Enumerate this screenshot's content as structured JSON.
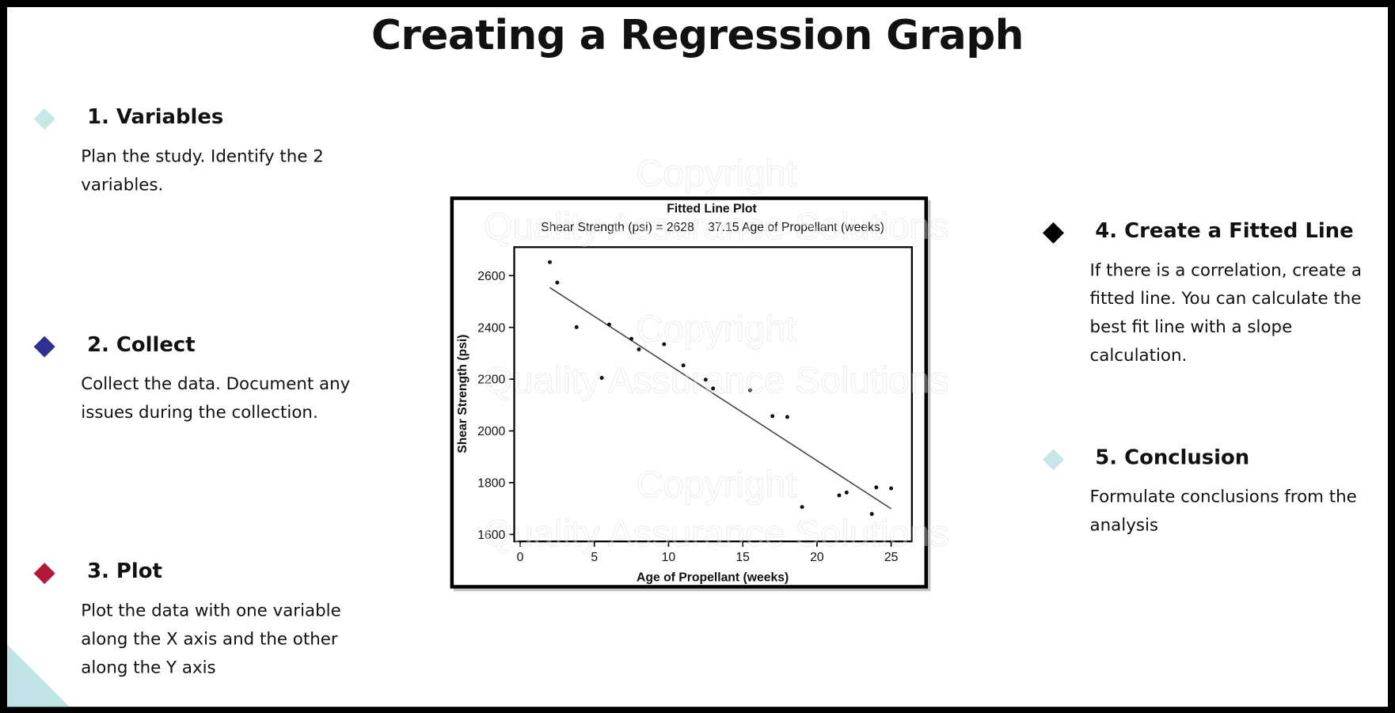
{
  "header": {
    "title": "Creating a Regression Graph"
  },
  "steps": [
    {
      "heading": "1. Variables",
      "text": "Plan the study. Identify the 2 variables."
    },
    {
      "heading": "2. Collect",
      "text": "Collect the data. Document any issues during the collection."
    },
    {
      "heading": "3. Plot",
      "text": "Plot the data with one variable along the X axis and the other along the Y axis"
    },
    {
      "heading": "4. Create a Fitted Line",
      "text": "If there is a correlation, create a fitted line. You can calculate the best fit line with a slope calculation."
    },
    {
      "heading": "5. Conclusion",
      "text": "Formulate conclusions from the analysis"
    }
  ],
  "watermark": [
    "Copyright",
    "Quality Assurance Solutions"
  ],
  "chart_data": {
    "type": "scatter",
    "title": "Fitted Line Plot",
    "subtitle": "Shear Strength (psi) = 2628    37.15 Age of Propellant (weeks)",
    "x_label": "Age of Propellant (weeks)",
    "y_label": "Shear Strength (psi)",
    "x": [
      2.0,
      2.5,
      3.8,
      5.5,
      6.0,
      7.5,
      8.0,
      9.7,
      11.0,
      12.5,
      13.0,
      15.5,
      17.0,
      18.0,
      19.0,
      21.5,
      22.0,
      23.7,
      24.0,
      25.0
    ],
    "y": [
      2652,
      2573,
      2401,
      2205,
      2411,
      2356,
      2315,
      2335,
      2253,
      2198,
      2164,
      2157,
      2057,
      2054,
      1706,
      1751,
      1762,
      1679,
      1782,
      1778
    ],
    "color": "#111111",
    "fit_line": {
      "x": [
        2,
        25
      ],
      "y": [
        2553.7,
        1699.3
      ],
      "color": "#444444"
    },
    "xlim": [
      -0.4,
      26.4
    ],
    "ylim": [
      1573,
      2710
    ],
    "xticks": [
      0,
      5,
      10,
      15,
      20,
      25
    ],
    "yticks": [
      1600,
      1800,
      2000,
      2200,
      2400,
      2600
    ]
  }
}
